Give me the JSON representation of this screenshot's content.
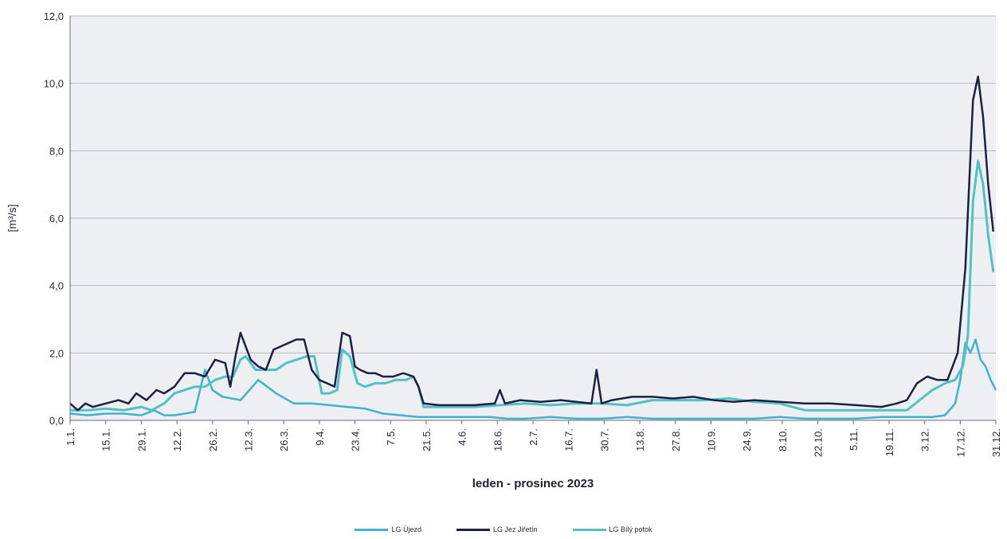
{
  "chart_data": {
    "type": "line",
    "xlabel": "leden - prosinec 2023",
    "ylabel": "[m³/s]",
    "ylim": [
      0,
      12
    ],
    "y_ticks": [
      "0,0",
      "2,0",
      "4,0",
      "6,0",
      "8,0",
      "10,0",
      "12,0"
    ],
    "x_ticks": [
      "1.1.",
      "15.1.",
      "29.1.",
      "12.2.",
      "26.2.",
      "12.3.",
      "26.3.",
      "9.4.",
      "23.4.",
      "7.5.",
      "21.5.",
      "4.6.",
      "18.6.",
      "2.7.",
      "16.7.",
      "30.7.",
      "13.8.",
      "27.8.",
      "10.9.",
      "24.9.",
      "8.10.",
      "22.10.",
      "5.11.",
      "19.11.",
      "3.12.",
      "17.12.",
      "31.12."
    ],
    "grid": true,
    "legend_position": "bottom",
    "series": [
      {
        "name": "LG Újezd",
        "color": "#3fb2cf",
        "x": [
          1,
          8,
          15,
          22,
          29,
          34,
          38,
          42,
          46,
          50,
          54,
          57,
          61,
          68,
          75,
          82,
          89,
          96,
          103,
          110,
          117,
          124,
          131,
          138,
          145,
          152,
          159,
          166,
          173,
          180,
          190,
          200,
          210,
          220,
          230,
          240,
          250,
          260,
          270,
          280,
          290,
          300,
          310,
          320,
          330,
          340,
          345,
          349,
          351,
          353,
          355,
          357,
          359,
          361,
          363,
          365
        ],
        "values": [
          0.2,
          0.15,
          0.2,
          0.2,
          0.15,
          0.3,
          0.15,
          0.15,
          0.2,
          0.25,
          1.5,
          0.9,
          0.7,
          0.6,
          1.2,
          0.8,
          0.5,
          0.5,
          0.45,
          0.4,
          0.35,
          0.2,
          0.15,
          0.1,
          0.1,
          0.1,
          0.1,
          0.1,
          0.05,
          0.05,
          0.1,
          0.05,
          0.05,
          0.1,
          0.05,
          0.05,
          0.05,
          0.05,
          0.05,
          0.1,
          0.05,
          0.05,
          0.05,
          0.1,
          0.1,
          0.1,
          0.15,
          0.5,
          1.2,
          2.3,
          2.0,
          2.4,
          1.8,
          1.6,
          1.2,
          0.9
        ]
      },
      {
        "name": "LG Jez Jiřetín",
        "color": "#1c2140",
        "x": [
          1,
          4,
          7,
          10,
          15,
          20,
          24,
          27,
          31,
          35,
          38,
          42,
          46,
          50,
          54,
          58,
          62,
          64,
          66,
          68,
          70,
          72,
          75,
          78,
          81,
          84,
          87,
          90,
          93,
          96,
          99,
          102,
          105,
          108,
          111,
          113,
          115,
          118,
          121,
          124,
          128,
          132,
          136,
          138,
          140,
          146,
          152,
          160,
          168,
          170,
          172,
          178,
          186,
          194,
          200,
          206,
          208,
          210,
          214,
          222,
          230,
          238,
          246,
          254,
          262,
          270,
          280,
          290,
          300,
          310,
          320,
          326,
          330,
          334,
          338,
          342,
          346,
          350,
          353,
          356,
          358,
          360,
          362,
          364
        ],
        "values": [
          0.5,
          0.3,
          0.5,
          0.4,
          0.5,
          0.6,
          0.5,
          0.8,
          0.6,
          0.9,
          0.8,
          1.0,
          1.4,
          1.4,
          1.3,
          1.8,
          1.7,
          1.0,
          1.9,
          2.6,
          2.2,
          1.8,
          1.6,
          1.5,
          2.1,
          2.2,
          2.3,
          2.4,
          2.4,
          1.5,
          1.2,
          1.1,
          1.0,
          2.6,
          2.5,
          1.6,
          1.5,
          1.4,
          1.4,
          1.3,
          1.3,
          1.4,
          1.3,
          1.0,
          0.5,
          0.45,
          0.45,
          0.45,
          0.5,
          0.9,
          0.5,
          0.6,
          0.55,
          0.6,
          0.55,
          0.5,
          1.5,
          0.5,
          0.6,
          0.7,
          0.7,
          0.65,
          0.7,
          0.6,
          0.55,
          0.6,
          0.55,
          0.5,
          0.5,
          0.45,
          0.4,
          0.5,
          0.6,
          1.1,
          1.3,
          1.2,
          1.2,
          2.0,
          4.5,
          9.5,
          10.2,
          9.0,
          7.0,
          5.6
        ]
      },
      {
        "name": "LG Bílý potok",
        "color": "#52c1c4",
        "x": [
          1,
          8,
          15,
          22,
          29,
          33,
          38,
          42,
          46,
          50,
          54,
          58,
          62,
          65,
          68,
          70,
          74,
          78,
          82,
          86,
          90,
          94,
          97,
          100,
          103,
          106,
          108,
          111,
          114,
          117,
          121,
          125,
          129,
          133,
          136,
          138,
          140,
          150,
          160,
          170,
          180,
          190,
          200,
          210,
          220,
          230,
          240,
          250,
          260,
          270,
          280,
          290,
          300,
          310,
          320,
          330,
          340,
          345,
          349,
          352,
          354,
          356,
          358,
          360,
          362,
          364
        ],
        "values": [
          0.3,
          0.3,
          0.35,
          0.3,
          0.4,
          0.3,
          0.5,
          0.8,
          0.9,
          1.0,
          1.0,
          1.2,
          1.3,
          1.3,
          1.8,
          1.9,
          1.5,
          1.5,
          1.5,
          1.7,
          1.8,
          1.9,
          1.9,
          0.8,
          0.8,
          0.9,
          2.1,
          1.9,
          1.1,
          1.0,
          1.1,
          1.1,
          1.2,
          1.2,
          1.3,
          1.0,
          0.4,
          0.4,
          0.4,
          0.45,
          0.5,
          0.45,
          0.5,
          0.5,
          0.45,
          0.6,
          0.6,
          0.6,
          0.65,
          0.55,
          0.5,
          0.3,
          0.3,
          0.3,
          0.3,
          0.3,
          0.9,
          1.1,
          1.2,
          1.6,
          2.5,
          6.5,
          7.7,
          7.0,
          5.5,
          4.4
        ]
      }
    ]
  }
}
